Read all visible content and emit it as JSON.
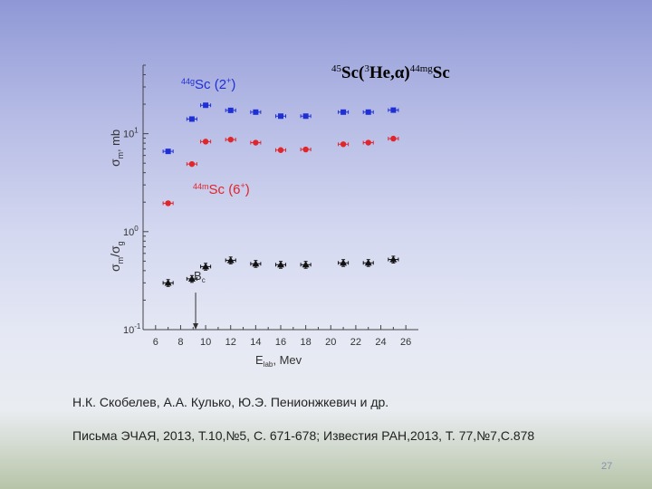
{
  "chart_data": {
    "type": "scatter",
    "title": "45Sc(3He,α)44mgSc",
    "title_parts": {
      "mass": "45",
      "target": "Sc(",
      "proj_mass": "3",
      "proj": "He,α)",
      "product_mass": "44mg",
      "product": "Sc"
    },
    "xlabel": "E_lab, Mev",
    "xlabel_parts": {
      "main": "E",
      "sub": "lab",
      "rest": ", Mev"
    },
    "ylabel_parts": {
      "top_sigma": "σ",
      "top_sub": "m",
      "sep": ",",
      "mid": "mb",
      "bot_sigma": "σ",
      "bot_sub1": "m",
      "slash": "/σ",
      "bot_sub2": "g"
    },
    "x_range": [
      5,
      27
    ],
    "y_range": [
      0.1,
      50
    ],
    "y_scale": "log",
    "x_ticks": [
      6,
      8,
      10,
      12,
      14,
      16,
      18,
      20,
      22,
      24,
      26
    ],
    "x_tick_labels": [
      "6",
      "8",
      "10",
      "12",
      "14",
      "16",
      "18",
      "20",
      "22",
      "24",
      "26"
    ],
    "y_ticks": [
      {
        "base": "10",
        "exp": "-1",
        "value": 0.1
      },
      {
        "base": "10",
        "exp": "0",
        "value": 1
      },
      {
        "base": "10",
        "exp": "1",
        "value": 10
      }
    ],
    "grid": false,
    "series": [
      {
        "name": "44gSc (2+)",
        "label_parts": {
          "mass": "44g",
          "elem": "Sc (2",
          "charge": "+",
          "close": ")"
        },
        "color": "#1f2fd6",
        "marker": "square",
        "x": [
          7.0,
          8.9,
          10.0,
          12.0,
          14.0,
          16.0,
          18.0,
          21.0,
          23.0,
          25.0
        ],
        "y": [
          6.6,
          14.1,
          19.5,
          17.3,
          16.6,
          15.1,
          15.1,
          16.6,
          16.6,
          17.4
        ],
        "xerr": 0.4
      },
      {
        "name": "44mSc (6+)",
        "label_parts": {
          "mass": "44m",
          "elem": "Sc (6",
          "charge": "+",
          "close": ")"
        },
        "color": "#e0252b",
        "marker": "circle",
        "x": [
          7.0,
          8.9,
          10.0,
          12.0,
          14.0,
          16.0,
          18.0,
          21.0,
          23.0,
          25.0
        ],
        "y": [
          1.95,
          4.9,
          8.3,
          8.7,
          8.1,
          6.8,
          6.9,
          7.8,
          8.1,
          8.9
        ],
        "xerr": 0.4
      },
      {
        "name": "σm/σg ratio",
        "color": "#111111",
        "marker": "triangle",
        "x": [
          7.0,
          8.9,
          10.0,
          12.0,
          14.0,
          16.0,
          18.0,
          21.0,
          23.0,
          25.0
        ],
        "y": [
          0.3,
          0.33,
          0.44,
          0.51,
          0.47,
          0.46,
          0.46,
          0.48,
          0.48,
          0.52
        ],
        "xerr": 0.4,
        "yerr_frac": 0.08
      }
    ],
    "annotations": [
      {
        "text_main": "B",
        "text_sub": "c",
        "x": 9.2,
        "arrow_from_y": 0.26,
        "arrow_to_y": 0.1
      }
    ]
  },
  "authors": "Н.К. Скобелев, А.А. Кулько,  Ю.Э. Пенионжкевич и др.",
  "reference": "Письма ЭЧАЯ, 2013, Т.10,№5, С. 671-678;  Известия РАН,2013, Т. 77,№7,С.878",
  "page_number": "27"
}
